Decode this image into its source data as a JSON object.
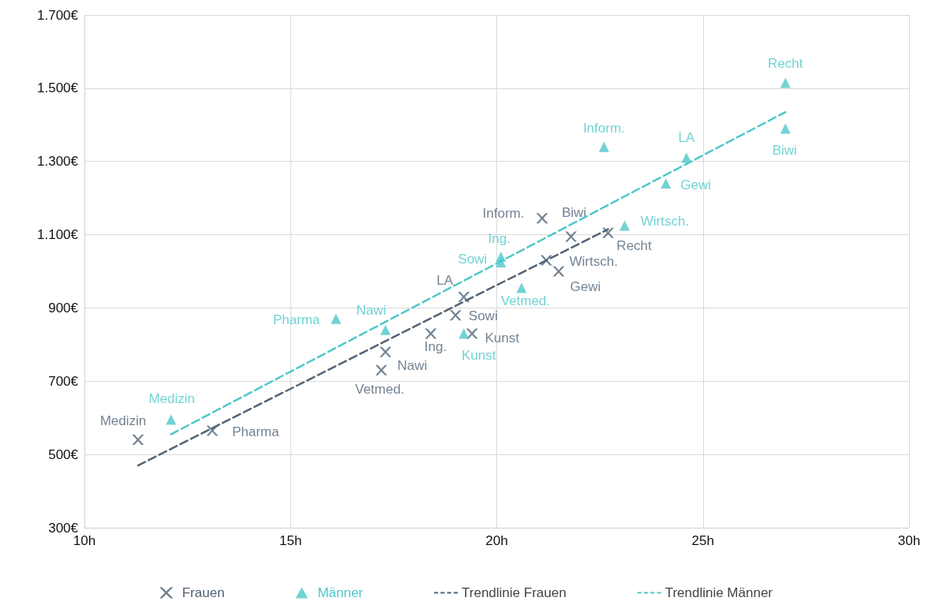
{
  "chart_data": {
    "type": "scatter",
    "xlim": [
      10,
      30
    ],
    "ylim": [
      300,
      1700
    ],
    "xticks": [
      {
        "value": 10,
        "label": "10h"
      },
      {
        "value": 15,
        "label": "15h"
      },
      {
        "value": 20,
        "label": "20h"
      },
      {
        "value": 25,
        "label": "25h"
      },
      {
        "value": 30,
        "label": "30h"
      }
    ],
    "yticks": [
      {
        "value": 300,
        "label": "300€"
      },
      {
        "value": 500,
        "label": "500€"
      },
      {
        "value": 700,
        "label": "700€"
      },
      {
        "value": 900,
        "label": "900€"
      },
      {
        "value": 1100,
        "label": "1.100€"
      },
      {
        "value": 1300,
        "label": "1.300€"
      },
      {
        "value": 1500,
        "label": "1.500€"
      },
      {
        "value": 1700,
        "label": "1.700€"
      }
    ],
    "grid": true,
    "legend": "bottom",
    "series": [
      {
        "name": "Frauen",
        "color": "#4f6478",
        "marker": "cross",
        "x": [
          11.3,
          13.1,
          17.2,
          17.3,
          18.4,
          19.0,
          19.4,
          19.2,
          21.1,
          21.8,
          21.2,
          21.5,
          22.7
        ],
        "values": [
          540,
          565,
          730,
          780,
          830,
          880,
          830,
          930,
          1145,
          1095,
          1030,
          1000,
          1105
        ],
        "value_labels": [
          "Medizin",
          "Pharma",
          "Vetmed.",
          "Nawi",
          "Ing.",
          "Sowi",
          "Kunst",
          "LA",
          "Inform.",
          "Biwi",
          "Wirtsch.",
          "Gewi",
          "Recht"
        ]
      },
      {
        "name": "Männer",
        "color": "#4fc8c8",
        "marker": "triangle",
        "x": [
          12.1,
          16.1,
          17.3,
          19.2,
          20.1,
          20.1,
          20.6,
          22.6,
          23.1,
          24.1,
          24.6,
          27.0,
          27.0
        ],
        "values": [
          595,
          870,
          840,
          830,
          1025,
          1040,
          955,
          1340,
          1125,
          1240,
          1310,
          1515,
          1390
        ],
        "value_labels": [
          "Medizin",
          "Pharma",
          "Nawi",
          "Kunst",
          "Sowi",
          "Ing.",
          "Vetmed.",
          "Inform.",
          "Wirtsch.",
          "Gewi",
          "LA",
          "Recht",
          "Biwi"
        ]
      },
      {
        "name": "Trendlinie Frauen",
        "type": "line",
        "color": "#4f6478",
        "line_style": "dashed",
        "marker": "none",
        "x": [
          11.3,
          22.7
        ],
        "values": [
          470,
          1115
        ]
      },
      {
        "name": "Trendlinie Männer",
        "type": "line",
        "color": "#4fc8c8",
        "line_style": "dashed",
        "marker": "none",
        "x": [
          12.1,
          27.0
        ],
        "values": [
          555,
          1435
        ]
      }
    ]
  }
}
